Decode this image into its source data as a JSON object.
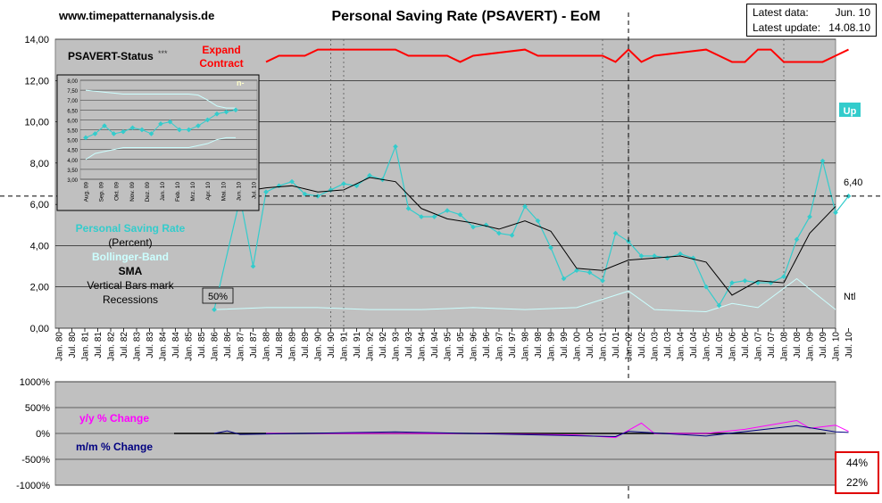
{
  "header": {
    "site": "www.timepatternanalysis.de",
    "title": "Personal Saving Rate (PSAVERT) - EoM",
    "latest_data_label": "Latest data:",
    "latest_data_value": "Jun. 10",
    "latest_update_label": "Latest update:",
    "latest_update_value": "14.08.10"
  },
  "status": {
    "title": "PSAVERT-Status",
    "stars": "***",
    "expand": "Expand",
    "contract": "Contract",
    "up": "Up",
    "ntl": "Ntl",
    "current_value": "6,40",
    "pct50": "50%",
    "n_label": "n-"
  },
  "legend": {
    "series1": "Personal Saving Rate",
    "series1_unit": "(Percent)",
    "series2": "Bollinger-Band",
    "series3": "SMA",
    "note1": "Vertical Bars mark",
    "note2": "Recessions",
    "yy": "y/y % Change",
    "mm": "m/m % Change"
  },
  "boxes": {
    "yy": "44%",
    "mm": "22%"
  },
  "colors": {
    "saving": "#33cccc",
    "sma": "#000000",
    "bollinger": "#ccffff",
    "status": "#ff0000",
    "yy": "#ff00ff",
    "mm": "#000080",
    "plot_bg": "#c0c0c0"
  },
  "chart_data": [
    {
      "type": "line",
      "ylim": [
        0,
        14
      ],
      "yticks": [
        "0,00",
        "2,00",
        "4,00",
        "6,00",
        "8,00",
        "10,00",
        "12,00",
        "14,00"
      ],
      "xticks": [
        "Jan. 80",
        "Jul. 80",
        "Jan. 81",
        "Jul. 81",
        "Jan. 82",
        "Jul. 82",
        "Jan. 83",
        "Jul. 83",
        "Jan. 84",
        "Jul. 84",
        "Jan. 85",
        "Jul. 85",
        "Jan. 86",
        "Jul. 86",
        "Jan. 87",
        "Jul. 87",
        "Jan. 88",
        "Jul. 88",
        "Jan. 89",
        "Jul. 89",
        "Jan. 90",
        "Jul. 90",
        "Jan. 91",
        "Jul. 91",
        "Jan. 92",
        "Jul. 92",
        "Jan. 93",
        "Jul. 93",
        "Jan. 94",
        "Jul. 94",
        "Jan. 95",
        "Jul. 95",
        "Jan. 96",
        "Jul. 96",
        "Jan. 97",
        "Jul. 97",
        "Jan. 98",
        "Jul. 98",
        "Jan. 99",
        "Jul. 99",
        "Jan. 00",
        "Jul. 00",
        "Jan. 01",
        "Jul. 01",
        "Jan. 02",
        "Jul. 02",
        "Jan. 03",
        "Jul. 03",
        "Jan. 04",
        "Jul. 04",
        "Jan. 05",
        "Jul. 05",
        "Jan. 06",
        "Jul. 06",
        "Jan. 07",
        "Jul. 07",
        "Jan. 08",
        "Jul. 08",
        "Jan. 09",
        "Jul. 09",
        "Jan. 10",
        "Jul. 10"
      ],
      "recessions": [
        "Jul. 90",
        "Jan. 91",
        "Jan. 01",
        "Jan. 02",
        "Jan. 08"
      ],
      "marker_line": "Jan. 02",
      "reference_level": 6.4,
      "series": [
        {
          "name": "Personal Saving Rate",
          "points": [
            [
              "Jan. 86",
              0.9
            ],
            [
              "Jan. 87",
              6.3
            ],
            [
              "Jul. 87",
              3.0
            ],
            [
              "Jan. 88",
              6.6
            ],
            [
              "Jul. 88",
              6.9
            ],
            [
              "Jan. 89",
              7.1
            ],
            [
              "Jul. 89",
              6.5
            ],
            [
              "Jan. 90",
              6.4
            ],
            [
              "Jul. 90",
              6.7
            ],
            [
              "Jan. 91",
              7.0
            ],
            [
              "Jul. 91",
              6.9
            ],
            [
              "Jan. 92",
              7.4
            ],
            [
              "Jul. 92",
              7.2
            ],
            [
              "Jan. 93",
              8.8
            ],
            [
              "Jul. 93",
              5.8
            ],
            [
              "Jan. 94",
              5.4
            ],
            [
              "Jul. 94",
              5.4
            ],
            [
              "Jan. 95",
              5.7
            ],
            [
              "Jul. 95",
              5.5
            ],
            [
              "Jan. 96",
              4.9
            ],
            [
              "Jul. 96",
              5.0
            ],
            [
              "Jan. 97",
              4.6
            ],
            [
              "Jul. 97",
              4.5
            ],
            [
              "Jan. 98",
              5.9
            ],
            [
              "Jul. 98",
              5.2
            ],
            [
              "Jan. 99",
              3.9
            ],
            [
              "Jul. 99",
              2.4
            ],
            [
              "Jan. 00",
              2.8
            ],
            [
              "Jul. 00",
              2.7
            ],
            [
              "Jan. 01",
              2.3
            ],
            [
              "Jul. 01",
              4.6
            ],
            [
              "Jan. 02",
              4.2
            ],
            [
              "Jul. 02",
              3.5
            ],
            [
              "Jan. 03",
              3.5
            ],
            [
              "Jul. 03",
              3.4
            ],
            [
              "Jan. 04",
              3.6
            ],
            [
              "Jul. 04",
              3.4
            ],
            [
              "Jan. 05",
              2.0
            ],
            [
              "Jul. 05",
              1.1
            ],
            [
              "Jan. 06",
              2.2
            ],
            [
              "Jul. 06",
              2.3
            ],
            [
              "Jan. 07",
              2.2
            ],
            [
              "Jul. 07",
              2.2
            ],
            [
              "Jan. 08",
              2.5
            ],
            [
              "Jul. 08",
              4.3
            ],
            [
              "Jan. 09",
              5.4
            ],
            [
              "Jul. 09",
              8.1
            ],
            [
              "Jan. 10",
              5.6
            ],
            [
              "Jul. 10",
              6.4
            ]
          ]
        },
        {
          "name": "SMA",
          "points": [
            [
              "Jan. 87",
              6.6
            ],
            [
              "Jan. 88",
              6.8
            ],
            [
              "Jan. 89",
              6.9
            ],
            [
              "Jan. 90",
              6.6
            ],
            [
              "Jan. 91",
              6.7
            ],
            [
              "Jan. 92",
              7.3
            ],
            [
              "Jan. 93",
              7.1
            ],
            [
              "Jan. 94",
              5.8
            ],
            [
              "Jan. 95",
              5.3
            ],
            [
              "Jan. 96",
              5.1
            ],
            [
              "Jan. 97",
              4.8
            ],
            [
              "Jan. 98",
              5.2
            ],
            [
              "Jan. 99",
              4.7
            ],
            [
              "Jan. 00",
              2.9
            ],
            [
              "Jan. 01",
              2.8
            ],
            [
              "Jan. 02",
              3.3
            ],
            [
              "Jan. 03",
              3.4
            ],
            [
              "Jan. 04",
              3.5
            ],
            [
              "Jan. 05",
              3.2
            ],
            [
              "Jan. 06",
              1.6
            ],
            [
              "Jan. 07",
              2.3
            ],
            [
              "Jan. 08",
              2.2
            ],
            [
              "Jan. 09",
              4.6
            ],
            [
              "Jan. 10",
              5.9
            ]
          ]
        },
        {
          "name": "Bollinger-Band",
          "points": [
            [
              "Jan. 86",
              0.9
            ],
            [
              "Jan. 88",
              1.0
            ],
            [
              "Jan. 90",
              1.0
            ],
            [
              "Jan. 92",
              0.9
            ],
            [
              "Jan. 94",
              0.9
            ],
            [
              "Jan. 96",
              1.0
            ],
            [
              "Jan. 98",
              0.9
            ],
            [
              "Jan. 00",
              1.0
            ],
            [
              "Jul. 01",
              1.6
            ],
            [
              "Jan. 02",
              1.8
            ],
            [
              "Jan. 03",
              0.9
            ],
            [
              "Jan. 05",
              0.8
            ],
            [
              "Jan. 06",
              1.2
            ],
            [
              "Jan. 07",
              1.0
            ],
            [
              "Jul. 08",
              2.4
            ],
            [
              "Jan. 10",
              0.9
            ]
          ]
        }
      ]
    },
    {
      "type": "line",
      "ylim": [
        -1000,
        1000
      ],
      "yticks": [
        "1000%",
        "500%",
        "0%",
        "-500%",
        "-1000%"
      ],
      "series": [
        {
          "name": "y/y % Change",
          "points": [
            [
              "Jan. 88",
              0
            ],
            [
              "Jan. 96",
              0
            ],
            [
              "Jan. 00",
              -30
            ],
            [
              "Jul. 01",
              -80
            ],
            [
              "Jul. 02",
              200
            ],
            [
              "Jan. 03",
              0
            ],
            [
              "Jan. 05",
              0
            ],
            [
              "Jul. 06",
              80
            ],
            [
              "Jul. 08",
              250
            ],
            [
              "Jan. 09",
              100
            ],
            [
              "Jan. 10",
              160
            ],
            [
              "Jul. 10",
              40
            ]
          ]
        },
        {
          "name": "m/m % Change",
          "points": [
            [
              "Jan. 86",
              0
            ],
            [
              "Jul. 86",
              50
            ],
            [
              "Jan. 87",
              -20
            ],
            [
              "Jan. 93",
              30
            ],
            [
              "Jul. 01",
              -60
            ],
            [
              "Jan. 02",
              40
            ],
            [
              "Jan. 05",
              -50
            ],
            [
              "Jul. 08",
              150
            ],
            [
              "Jan. 10",
              30
            ],
            [
              "Jul. 10",
              20
            ]
          ]
        }
      ]
    }
  ]
}
